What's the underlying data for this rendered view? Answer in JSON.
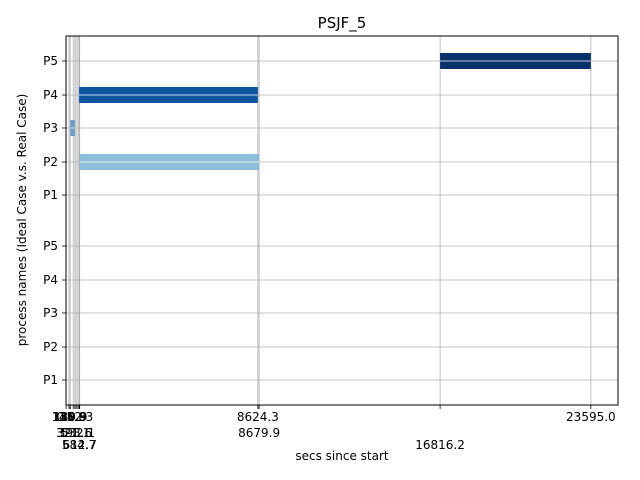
{
  "chart_data": {
    "type": "bar",
    "orientation": "horizontal",
    "title": "PSJF_5",
    "xlabel": "secs since start",
    "ylabel": "process names (Ideal Case v.s. Real Case)",
    "xlim": [
      -3.1,
      24815.0
    ],
    "grid": true,
    "y_tick_labels": [
      "P1",
      "P2",
      "P3",
      "P4",
      "P5",
      "P1",
      "P2",
      "P3",
      "P4",
      "P5"
    ],
    "x_tick_labels": [
      {
        "value": 0.0,
        "label": "0.0",
        "row": 0
      },
      {
        "value": 130.8,
        "label": "130.8",
        "row": 0
      },
      {
        "value": 131.9,
        "label": "131.9",
        "row": 0
      },
      {
        "value": 189.9,
        "label": "189.9",
        "row": 0
      },
      {
        "value": 321.1,
        "label": "321.1",
        "row": 1
      },
      {
        "value": 398.6,
        "label": "398.6",
        "row": 1
      },
      {
        "value": 452.3,
        "label": "452.3",
        "row": 0
      },
      {
        "value": 532.1,
        "label": "532.1",
        "row": 1
      },
      {
        "value": 584.7,
        "label": "584.7",
        "row": 2
      },
      {
        "value": 612.7,
        "label": "612.7",
        "row": 2
      },
      {
        "value": 8624.3,
        "label": "8624.3",
        "row": 0
      },
      {
        "value": 8679.9,
        "label": "8679.9",
        "row": 1
      },
      {
        "value": 16816.2,
        "label": "16816.2",
        "row": 2
      },
      {
        "value": 23595.0,
        "label": "23595.0",
        "row": 0
      }
    ],
    "series": [
      {
        "process": "P3",
        "start": 189.9,
        "end": 398.6,
        "color": "#6c9ec8",
        "lane": "upper"
      },
      {
        "process": "P2",
        "start": 612.7,
        "end": 8679.9,
        "color": "#8dbfdc",
        "lane": "upper"
      },
      {
        "process": "P4",
        "start": 584.7,
        "end": 8624.3,
        "color": "#0d55a0",
        "lane": "upper"
      },
      {
        "process": "P5",
        "start": 16816.2,
        "end": 23595.0,
        "color": "#08306b",
        "lane": "upper"
      }
    ],
    "legend": "none"
  }
}
